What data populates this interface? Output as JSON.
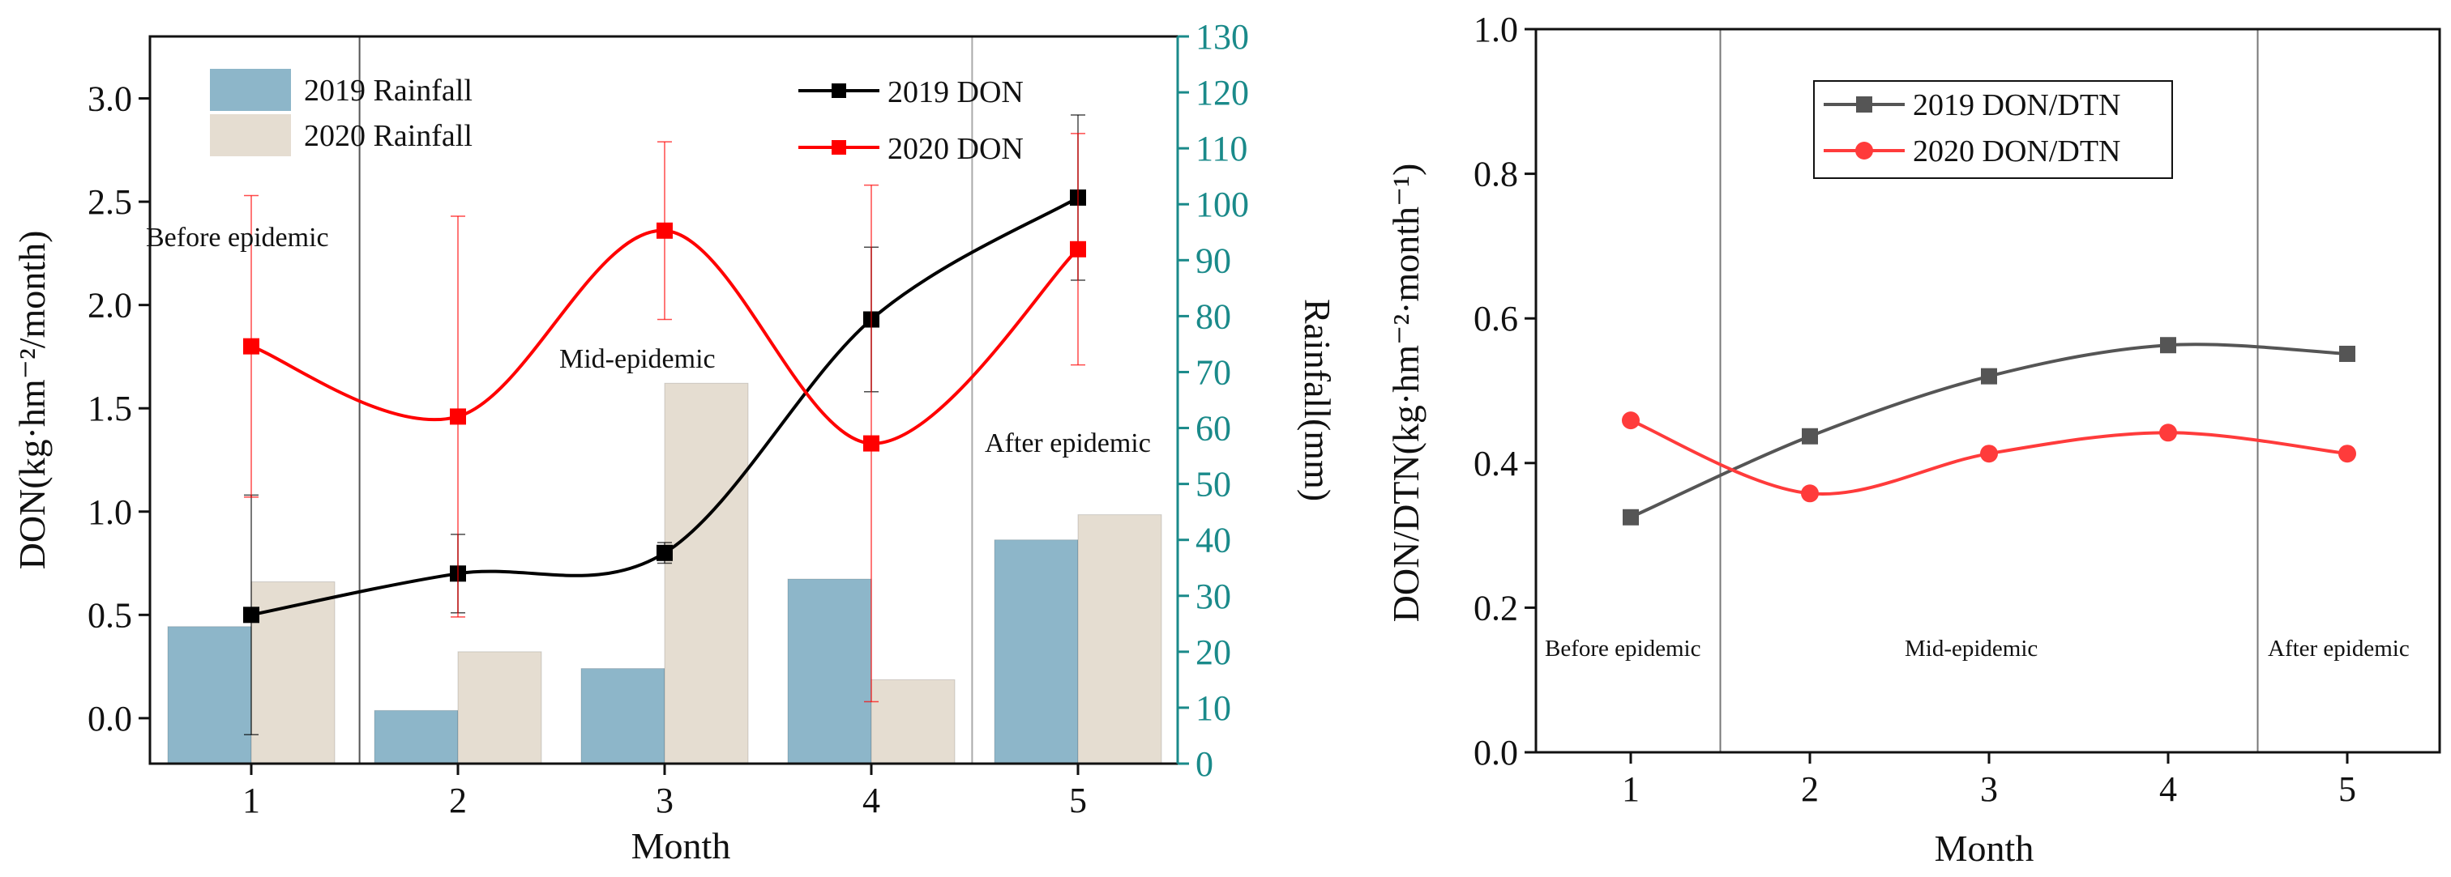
{
  "chart_data": [
    {
      "type": "bar+line",
      "title": "",
      "xlabel": "Month",
      "ylabel": "DON(kg·hm⁻²/month)",
      "y2label": "Rainfall(mm)",
      "categories": [
        1,
        2,
        3,
        4,
        5
      ],
      "x_tick_labels": [
        "1",
        "2",
        "3",
        "4",
        "5"
      ],
      "ylim": [
        -0.22,
        3.3
      ],
      "y_ticks": [
        0.0,
        0.5,
        1.0,
        1.5,
        2.0,
        2.5,
        3.0
      ],
      "y_tick_labels": [
        "0.0",
        "0.5",
        "1.0",
        "1.5",
        "2.0",
        "2.5",
        "3.0"
      ],
      "y2lim": [
        0,
        130
      ],
      "y2_ticks": [
        0,
        10,
        20,
        30,
        40,
        50,
        60,
        70,
        80,
        90,
        100,
        110,
        120,
        130
      ],
      "y2_tick_labels": [
        "0",
        "10",
        "20",
        "30",
        "40",
        "50",
        "60",
        "70",
        "80",
        "90",
        "100",
        "110",
        "120",
        "130"
      ],
      "bar_series": [
        {
          "name": "2019 Rainfall",
          "axis": "right",
          "color": "#8db6c9",
          "values": [
            24.5,
            9.5,
            17,
            33,
            40
          ]
        },
        {
          "name": "2020 Rainfall",
          "axis": "right",
          "color": "#e5ddd1",
          "values": [
            32.5,
            20,
            68,
            15,
            44.5
          ]
        }
      ],
      "line_series": [
        {
          "name": "2019 DON",
          "axis": "left",
          "color": "#000000",
          "marker": "square",
          "values": [
            0.5,
            0.7,
            0.8,
            1.93,
            2.52
          ],
          "err": [
            0.58,
            0.19,
            0.05,
            0.35,
            0.4
          ]
        },
        {
          "name": "2020 DON",
          "axis": "left",
          "color": "#ff0000",
          "marker": "square",
          "values": [
            1.8,
            1.46,
            2.36,
            1.33,
            2.27
          ],
          "err": [
            0.73,
            0.97,
            0.43,
            1.25,
            0.56
          ]
        }
      ],
      "phase_dividers": [
        1.5,
        4.5
      ],
      "annotations": [
        "Before epidemic",
        "Mid-epidemic",
        "After epidemic"
      ],
      "legend_placement": "top"
    },
    {
      "type": "line",
      "title": "",
      "xlabel": "Month",
      "ylabel": "DON/DTN(kg·hm⁻²·month⁻¹)",
      "categories": [
        1,
        2,
        3,
        4,
        5
      ],
      "x_tick_labels": [
        "1",
        "2",
        "3",
        "4",
        "5"
      ],
      "ylim": [
        0.0,
        1.0
      ],
      "y_ticks": [
        0.0,
        0.2,
        0.4,
        0.6,
        0.8,
        1.0
      ],
      "y_tick_labels": [
        "0.0",
        "0.2",
        "0.4",
        "0.6",
        "0.8",
        "1.0"
      ],
      "series": [
        {
          "name": "2019 DON/DTN",
          "color": "#555555",
          "marker": "square",
          "values": [
            0.325,
            0.437,
            0.52,
            0.563,
            0.551
          ]
        },
        {
          "name": "2020 DON/DTN",
          "color": "#ff3b3b",
          "marker": "circle",
          "values": [
            0.459,
            0.358,
            0.413,
            0.442,
            0.413
          ]
        }
      ],
      "phase_dividers": [
        1.5,
        4.5
      ],
      "annotations": [
        "Before epidemic",
        "Mid-epidemic",
        "After epidemic"
      ],
      "legend_placement": "top"
    }
  ]
}
